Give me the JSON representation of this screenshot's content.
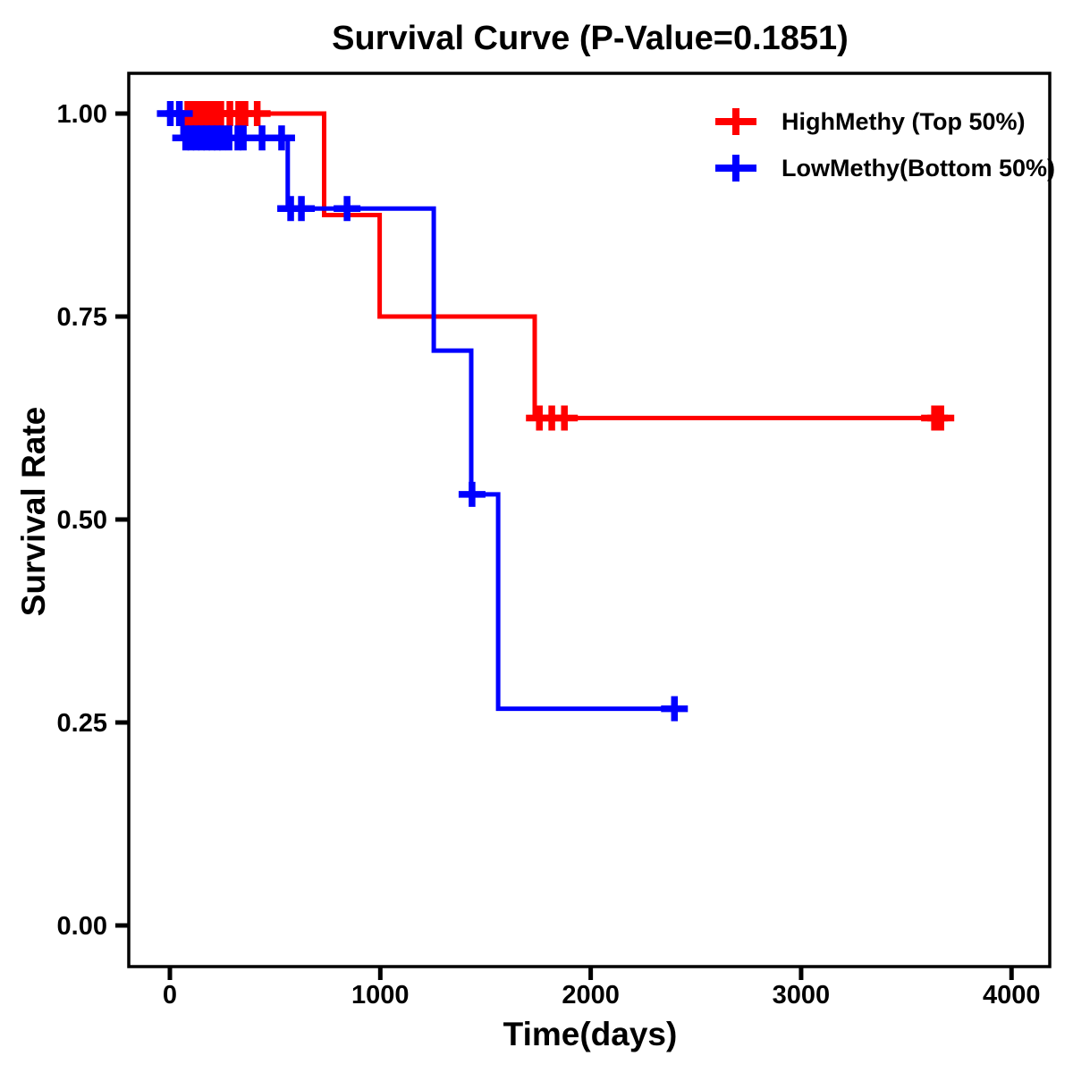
{
  "chart_data": {
    "type": "line",
    "subtype": "kaplan-meier-step-curve",
    "title": "Survival Curve (P-Value=0.1851)",
    "p_value": "0.1851",
    "xlabel": "Time(days)",
    "ylabel": "Survival Rate",
    "xlim": [
      0,
      4000
    ],
    "ylim": [
      0.0,
      1.0
    ],
    "x_tick_values": [
      0,
      1000,
      2000,
      3000,
      4000
    ],
    "x_tick_labels": [
      "0",
      "1000",
      "2000",
      "3000",
      "4000"
    ],
    "y_tick_values": [
      0.0,
      0.25,
      0.5,
      0.75,
      1.0
    ],
    "y_tick_labels": [
      "0.00",
      "0.25",
      "0.50",
      "0.75",
      "1.00"
    ],
    "grid": false,
    "legend_position": "top-right",
    "series": [
      {
        "name": "HighMethy (Top 50%)",
        "color": "#ff0000",
        "step_points": [
          [
            0,
            1.0
          ],
          [
            733,
            1.0
          ],
          [
            733,
            0.875
          ],
          [
            997,
            0.875
          ],
          [
            997,
            0.75
          ],
          [
            1734,
            0.75
          ],
          [
            1734,
            0.625
          ],
          [
            3670,
            0.625
          ]
        ],
        "censor_marks": [
          [
            85,
            1.0
          ],
          [
            108,
            1.0
          ],
          [
            131,
            1.0
          ],
          [
            154,
            1.0
          ],
          [
            177,
            1.0
          ],
          [
            200,
            1.0
          ],
          [
            221,
            1.0
          ],
          [
            242,
            1.0
          ],
          [
            285,
            1.0
          ],
          [
            327,
            1.0
          ],
          [
            357,
            1.0
          ],
          [
            415,
            1.0
          ],
          [
            1756,
            0.625
          ],
          [
            1815,
            0.625
          ],
          [
            1875,
            0.625
          ],
          [
            3634,
            0.625
          ],
          [
            3664,
            0.625
          ]
        ]
      },
      {
        "name": "LowMethy(Bottom 50%)",
        "color": "#0000ff",
        "step_points": [
          [
            0,
            1.0
          ],
          [
            60,
            1.0
          ],
          [
            60,
            0.97
          ],
          [
            560,
            0.97
          ],
          [
            560,
            0.883
          ],
          [
            1254,
            0.883
          ],
          [
            1254,
            0.708
          ],
          [
            1432,
            0.708
          ],
          [
            1432,
            0.531
          ],
          [
            1560,
            0.531
          ],
          [
            1560,
            0.267
          ],
          [
            2405,
            0.267
          ]
        ],
        "censor_marks": [
          [
            2,
            1.0
          ],
          [
            45,
            1.0
          ],
          [
            75,
            0.97
          ],
          [
            100,
            0.97
          ],
          [
            125,
            0.97
          ],
          [
            150,
            0.97
          ],
          [
            175,
            0.97
          ],
          [
            200,
            0.97
          ],
          [
            225,
            0.97
          ],
          [
            250,
            0.97
          ],
          [
            281,
            0.97
          ],
          [
            323,
            0.97
          ],
          [
            349,
            0.97
          ],
          [
            438,
            0.97
          ],
          [
            531,
            0.97
          ],
          [
            574,
            0.883
          ],
          [
            625,
            0.883
          ],
          [
            842,
            0.883
          ],
          [
            1436,
            0.531
          ],
          [
            2398,
            0.267
          ]
        ]
      }
    ]
  }
}
